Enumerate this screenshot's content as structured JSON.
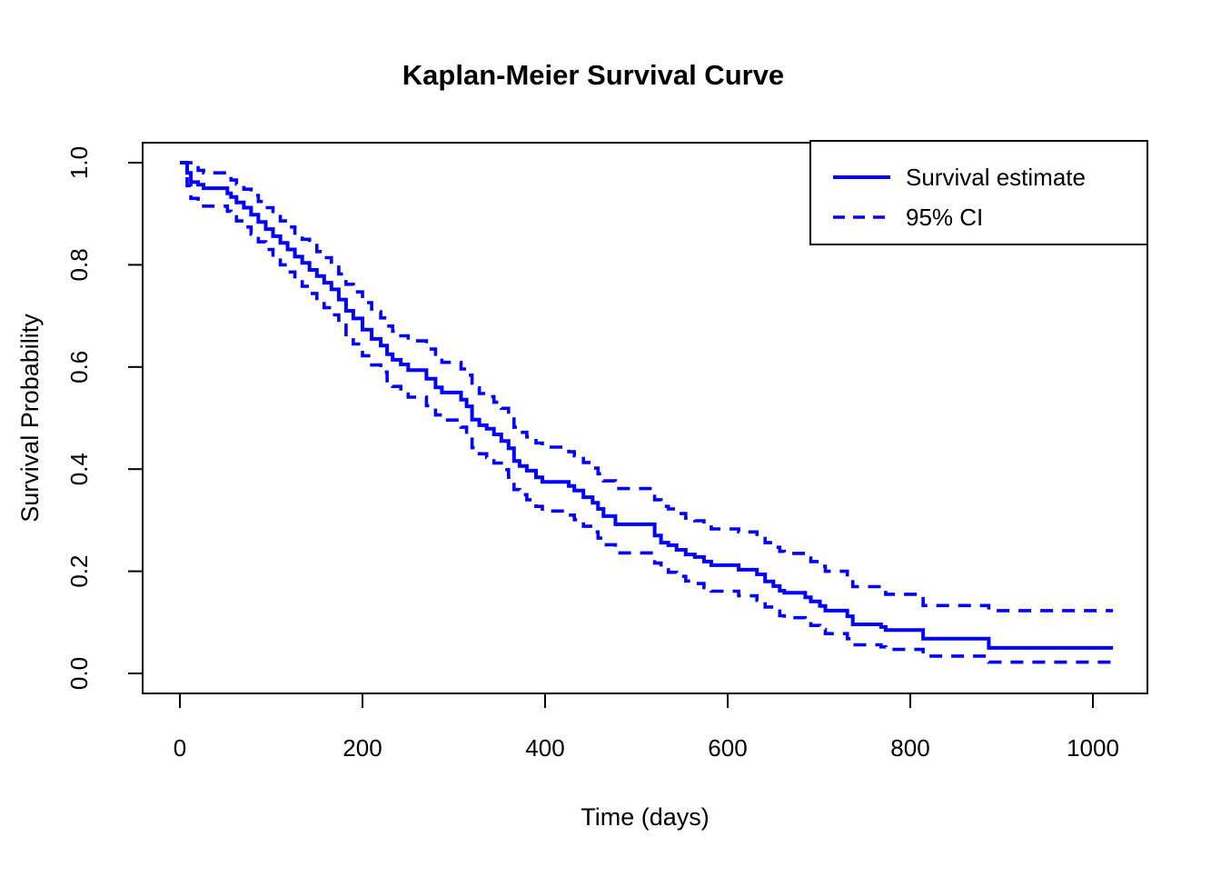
{
  "page": {
    "background": "#FFFFFF"
  },
  "colors": {
    "curve": "#0000FF",
    "axis": "#000000",
    "plot_background": "#FFFFFF"
  },
  "chart_data": {
    "type": "line",
    "subtype": "kaplan-meier-step-function",
    "title": "Kaplan-Meier Survival Curve",
    "xlabel": "Time (days)",
    "ylabel": "Survival Probability",
    "grid": false,
    "xlim": [
      0,
      1000
    ],
    "ylim": [
      0.0,
      1.0
    ],
    "x_ticks": [
      0,
      200,
      400,
      600,
      800,
      1000
    ],
    "x_tick_labels": [
      "0",
      "200",
      "400",
      "600",
      "800",
      "1000"
    ],
    "y_ticks": [
      0.0,
      0.2,
      0.4,
      0.6,
      0.8,
      1.0
    ],
    "y_tick_labels": [
      "0.0",
      "0.2",
      "0.4",
      "0.6",
      "0.8",
      "1.0"
    ],
    "legend": {
      "position": "top-right",
      "items": [
        {
          "label": "Survival estimate",
          "line": "solid",
          "color": "#0000FF"
        },
        {
          "label": "95% CI",
          "line": "dashed",
          "color": "#0000FF"
        }
      ]
    },
    "series": {
      "end_time": 1022,
      "time": [
        0,
        8,
        12,
        20,
        26,
        52,
        56,
        62,
        70,
        78,
        86,
        94,
        102,
        110,
        118,
        126,
        134,
        142,
        150,
        158,
        166,
        174,
        182,
        190,
        200,
        210,
        220,
        227,
        233,
        242,
        250,
        270,
        280,
        287,
        308,
        314,
        320,
        328,
        336,
        344,
        352,
        360,
        366,
        372,
        380,
        390,
        397,
        426,
        432,
        442,
        452,
        458,
        464,
        477,
        520,
        527,
        535,
        544,
        554,
        564,
        574,
        582,
        612,
        632,
        641,
        650,
        657,
        662,
        685,
        691,
        701,
        707,
        731,
        737,
        768,
        773,
        814,
        886
      ],
      "survival": [
        1.0,
        0.98,
        0.962,
        0.957,
        0.95,
        0.94,
        0.933,
        0.922,
        0.912,
        0.898,
        0.884,
        0.87,
        0.856,
        0.843,
        0.83,
        0.816,
        0.804,
        0.79,
        0.778,
        0.765,
        0.752,
        0.732,
        0.71,
        0.695,
        0.673,
        0.655,
        0.642,
        0.625,
        0.614,
        0.605,
        0.594,
        0.577,
        0.56,
        0.55,
        0.536,
        0.523,
        0.497,
        0.486,
        0.479,
        0.468,
        0.455,
        0.441,
        0.416,
        0.406,
        0.397,
        0.384,
        0.375,
        0.367,
        0.358,
        0.345,
        0.334,
        0.322,
        0.308,
        0.292,
        0.27,
        0.256,
        0.251,
        0.242,
        0.233,
        0.228,
        0.219,
        0.212,
        0.203,
        0.194,
        0.18,
        0.171,
        0.162,
        0.158,
        0.149,
        0.141,
        0.132,
        0.123,
        0.112,
        0.096,
        0.091,
        0.085,
        0.068,
        0.05
      ],
      "ci_lower": [
        1.0,
        0.955,
        0.93,
        0.922,
        0.915,
        0.905,
        0.898,
        0.886,
        0.874,
        0.86,
        0.845,
        0.83,
        0.815,
        0.8,
        0.786,
        0.772,
        0.758,
        0.744,
        0.73,
        0.716,
        0.702,
        0.682,
        0.66,
        0.645,
        0.622,
        0.604,
        0.59,
        0.573,
        0.562,
        0.552,
        0.541,
        0.524,
        0.506,
        0.496,
        0.482,
        0.468,
        0.442,
        0.43,
        0.423,
        0.412,
        0.399,
        0.384,
        0.36,
        0.35,
        0.34,
        0.327,
        0.318,
        0.31,
        0.301,
        0.288,
        0.277,
        0.265,
        0.252,
        0.236,
        0.216,
        0.203,
        0.198,
        0.19,
        0.181,
        0.176,
        0.168,
        0.161,
        0.152,
        0.143,
        0.13,
        0.122,
        0.113,
        0.109,
        0.101,
        0.094,
        0.086,
        0.078,
        0.068,
        0.056,
        0.052,
        0.047,
        0.034,
        0.022
      ],
      "ci_upper": [
        1.0,
        1.0,
        0.99,
        0.985,
        0.98,
        0.972,
        0.966,
        0.958,
        0.948,
        0.936,
        0.924,
        0.912,
        0.898,
        0.886,
        0.874,
        0.862,
        0.85,
        0.838,
        0.826,
        0.814,
        0.802,
        0.782,
        0.762,
        0.747,
        0.726,
        0.708,
        0.696,
        0.68,
        0.67,
        0.661,
        0.651,
        0.635,
        0.619,
        0.609,
        0.596,
        0.584,
        0.559,
        0.548,
        0.542,
        0.531,
        0.519,
        0.506,
        0.482,
        0.472,
        0.463,
        0.451,
        0.443,
        0.434,
        0.426,
        0.413,
        0.402,
        0.391,
        0.377,
        0.362,
        0.34,
        0.327,
        0.322,
        0.313,
        0.304,
        0.299,
        0.29,
        0.283,
        0.277,
        0.269,
        0.256,
        0.247,
        0.239,
        0.235,
        0.226,
        0.219,
        0.21,
        0.2,
        0.188,
        0.17,
        0.163,
        0.155,
        0.133,
        0.123
      ]
    }
  }
}
